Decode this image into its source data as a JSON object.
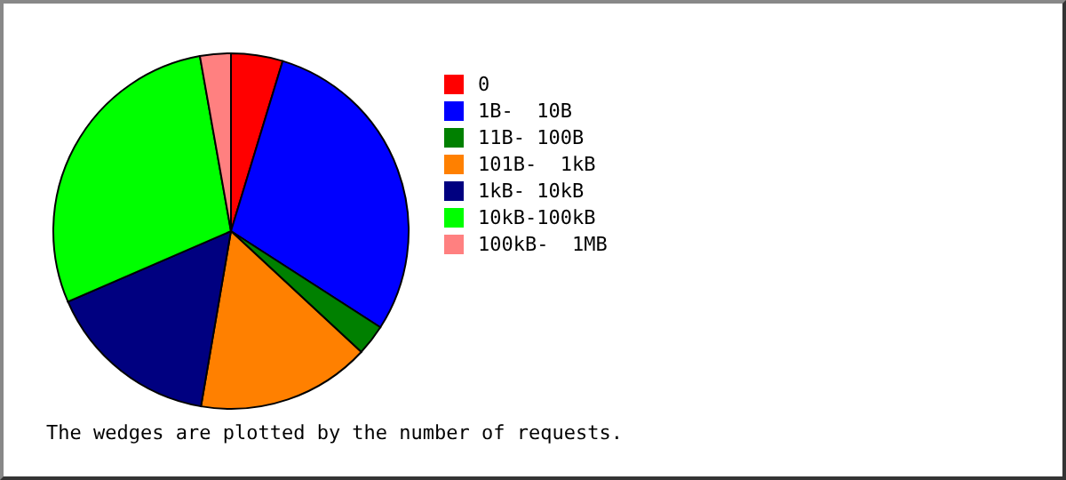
{
  "chart_data": {
    "type": "pie",
    "categories": [
      "0",
      "1B-  10B",
      "11B- 100B",
      "101B-  1kB",
      "1kB- 10kB",
      "10kB-100kB",
      "100kB-  1MB"
    ],
    "values": [
      4.7,
      29.4,
      2.8,
      15.8,
      15.8,
      28.7,
      2.8
    ],
    "colors": [
      "#ff0000",
      "#0000ff",
      "#008000",
      "#ff8000",
      "#000080",
      "#00ff00",
      "#ff8080"
    ],
    "legend": "right",
    "annotations": [
      "The wedges are plotted by the number of requests."
    ]
  }
}
